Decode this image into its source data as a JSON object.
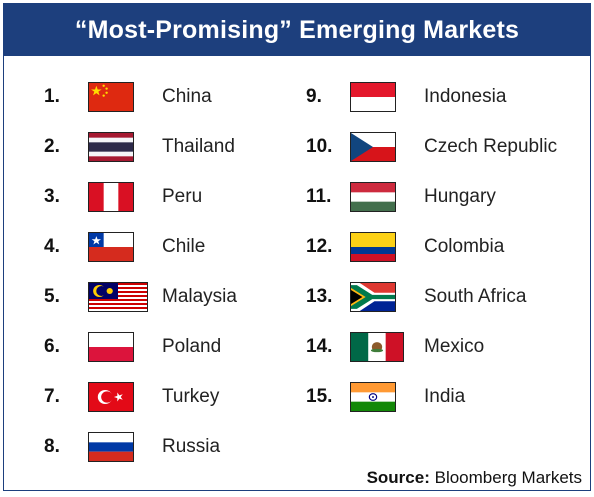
{
  "title": "“Most-Promising” Emerging Markets",
  "source": {
    "label": "Source:",
    "value": "Bloomberg Markets"
  },
  "markets": [
    {
      "rank": "1.",
      "country": "China",
      "flag": "flag-china"
    },
    {
      "rank": "2.",
      "country": "Thailand",
      "flag": "flag-thailand"
    },
    {
      "rank": "3.",
      "country": "Peru",
      "flag": "flag-peru"
    },
    {
      "rank": "4.",
      "country": "Chile",
      "flag": "flag-chile"
    },
    {
      "rank": "5.",
      "country": "Malaysia",
      "flag": "flag-malaysia"
    },
    {
      "rank": "6.",
      "country": "Poland",
      "flag": "flag-poland"
    },
    {
      "rank": "7.",
      "country": "Turkey",
      "flag": "flag-turkey"
    },
    {
      "rank": "8.",
      "country": "Russia",
      "flag": "flag-russia"
    },
    {
      "rank": "9.",
      "country": "Indonesia",
      "flag": "flag-indonesia"
    },
    {
      "rank": "10.",
      "country": "Czech Republic",
      "flag": "flag-czech-republic"
    },
    {
      "rank": "11.",
      "country": "Hungary",
      "flag": "flag-hungary"
    },
    {
      "rank": "12.",
      "country": "Colombia",
      "flag": "flag-colombia"
    },
    {
      "rank": "13.",
      "country": "South Africa",
      "flag": "flag-south-africa"
    },
    {
      "rank": "14.",
      "country": "Mexico",
      "flag": "flag-mexico"
    },
    {
      "rank": "15.",
      "country": "India",
      "flag": "flag-india"
    }
  ],
  "colors": {
    "header": "#1d3f7d",
    "text": "#222222"
  }
}
